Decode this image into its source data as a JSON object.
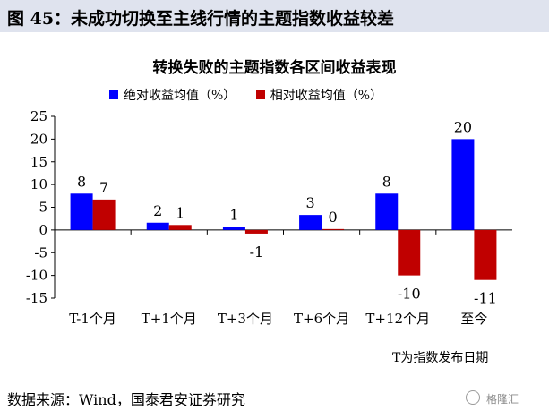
{
  "header": {
    "title": "图 45：未成功切换至主线行情的主题指数收益较差"
  },
  "source": {
    "text": "数据来源：Wind，国泰君安证券研究"
  },
  "watermark": {
    "text": "格隆汇"
  },
  "chart_data": {
    "type": "bar",
    "title": "转换失败的主题指数各区间收益表现",
    "categories": [
      "T-1个月",
      "T+1个月",
      "T+3个月",
      "T+6个月",
      "T+12个月",
      "至今"
    ],
    "series": [
      {
        "name": "绝对收益均值（%）",
        "color": "#0000ff",
        "values": [
          8,
          1.6,
          0.7,
          3.3,
          8,
          20
        ],
        "labels": [
          "8",
          "2",
          "1",
          "3",
          "8",
          "20"
        ]
      },
      {
        "name": "相对收益均值（%）",
        "color": "#c00000",
        "values": [
          6.7,
          1.1,
          -0.8,
          0.2,
          -10,
          -11
        ],
        "labels": [
          "7",
          "1",
          "-1",
          "0",
          "-10",
          "-11"
        ]
      }
    ],
    "ylim": [
      -15,
      25
    ],
    "yticks": [
      "25",
      "20",
      "15",
      "10",
      "5",
      "0",
      "-5",
      "-10",
      "-15"
    ],
    "xlabel": "T为指数发布日期",
    "ylabel": "",
    "legend": "top-left"
  }
}
